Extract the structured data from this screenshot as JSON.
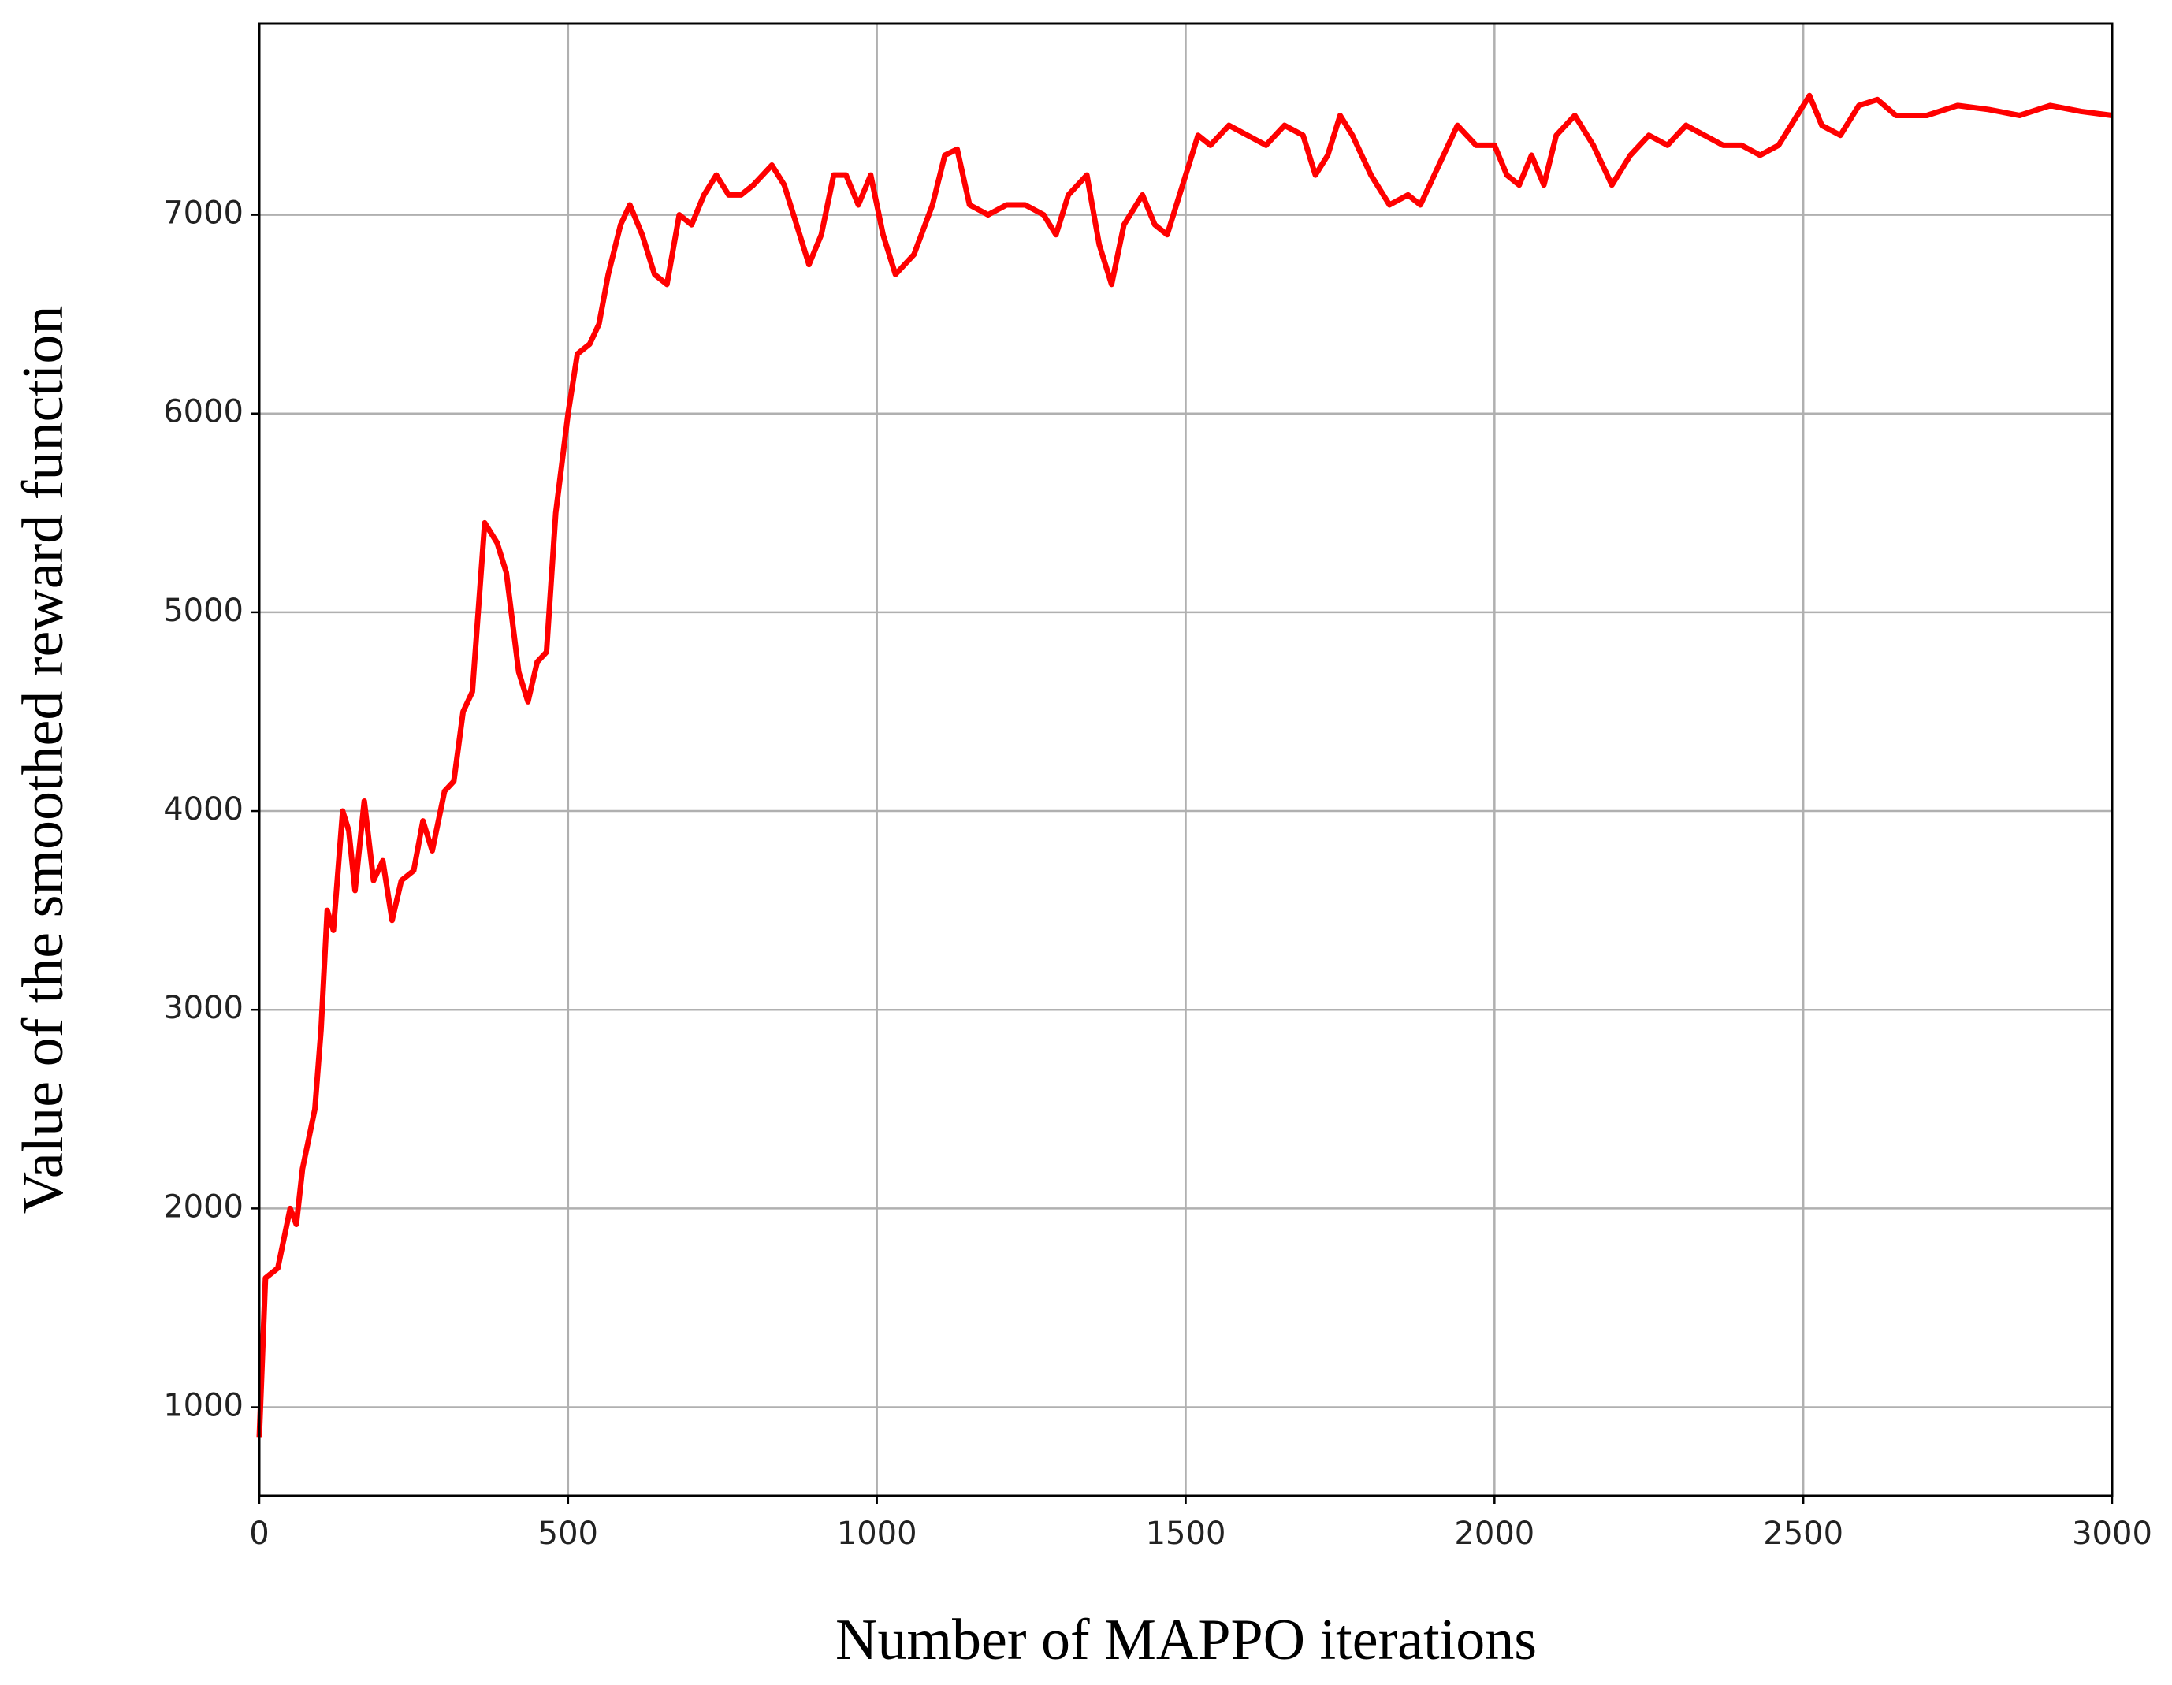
{
  "chart_data": {
    "type": "line",
    "x_label": "Number of MAPPO iterations",
    "y_label": "Value of the smoothed reward function",
    "color": "#ff0000",
    "grid": true,
    "xlim": [
      0,
      3000
    ],
    "ylim": [
      554,
      7962
    ],
    "xticks": [
      0,
      500,
      1000,
      1500,
      2000,
      2500,
      3000
    ],
    "yticks": [
      1000,
      2000,
      3000,
      4000,
      5000,
      6000,
      7000
    ],
    "x": [
      0,
      10,
      30,
      50,
      60,
      70,
      90,
      100,
      110,
      120,
      135,
      145,
      155,
      170,
      185,
      200,
      215,
      230,
      250,
      265,
      280,
      300,
      315,
      330,
      345,
      365,
      385,
      400,
      420,
      435,
      450,
      465,
      480,
      500,
      515,
      535,
      550,
      565,
      585,
      600,
      620,
      640,
      660,
      680,
      700,
      720,
      740,
      760,
      780,
      800,
      830,
      850,
      870,
      890,
      910,
      930,
      950,
      970,
      990,
      1010,
      1030,
      1060,
      1090,
      1110,
      1130,
      1150,
      1180,
      1210,
      1240,
      1270,
      1290,
      1310,
      1340,
      1360,
      1380,
      1400,
      1430,
      1450,
      1470,
      1500,
      1520,
      1540,
      1570,
      1600,
      1630,
      1660,
      1690,
      1710,
      1730,
      1750,
      1770,
      1800,
      1830,
      1860,
      1880,
      1910,
      1940,
      1970,
      2000,
      2020,
      2040,
      2060,
      2080,
      2100,
      2130,
      2160,
      2190,
      2220,
      2250,
      2280,
      2310,
      2340,
      2370,
      2400,
      2430,
      2460,
      2490,
      2510,
      2530,
      2560,
      2590,
      2620,
      2650,
      2700,
      2750,
      2800,
      2850,
      2900,
      2950,
      3000
    ],
    "values": [
      850,
      1650,
      1700,
      2000,
      1920,
      2200,
      2500,
      2900,
      3500,
      3400,
      4000,
      3900,
      3600,
      4050,
      3650,
      3750,
      3450,
      3650,
      3700,
      3950,
      3800,
      4100,
      4150,
      4500,
      4600,
      5450,
      5350,
      5200,
      4700,
      4550,
      4750,
      4800,
      5500,
      6000,
      6300,
      6350,
      6450,
      6700,
      6950,
      7050,
      6900,
      6700,
      6650,
      7000,
      6950,
      7100,
      7200,
      7100,
      7100,
      7150,
      7250,
      7150,
      6950,
      6750,
      6900,
      7200,
      7200,
      7050,
      7200,
      6900,
      6700,
      6800,
      7050,
      7300,
      7330,
      7050,
      7000,
      7050,
      7050,
      7000,
      6900,
      7100,
      7200,
      6850,
      6650,
      6950,
      7100,
      6950,
      6900,
      7200,
      7400,
      7350,
      7450,
      7400,
      7350,
      7450,
      7400,
      7200,
      7300,
      7500,
      7400,
      7200,
      7050,
      7100,
      7050,
      7250,
      7450,
      7350,
      7350,
      7200,
      7150,
      7300,
      7150,
      7400,
      7500,
      7350,
      7150,
      7300,
      7400,
      7350,
      7450,
      7400,
      7350,
      7350,
      7300,
      7350,
      7500,
      7600,
      7450,
      7400,
      7550,
      7580,
      7500,
      7500,
      7550,
      7530,
      7500,
      7550,
      7520,
      7500
    ]
  }
}
